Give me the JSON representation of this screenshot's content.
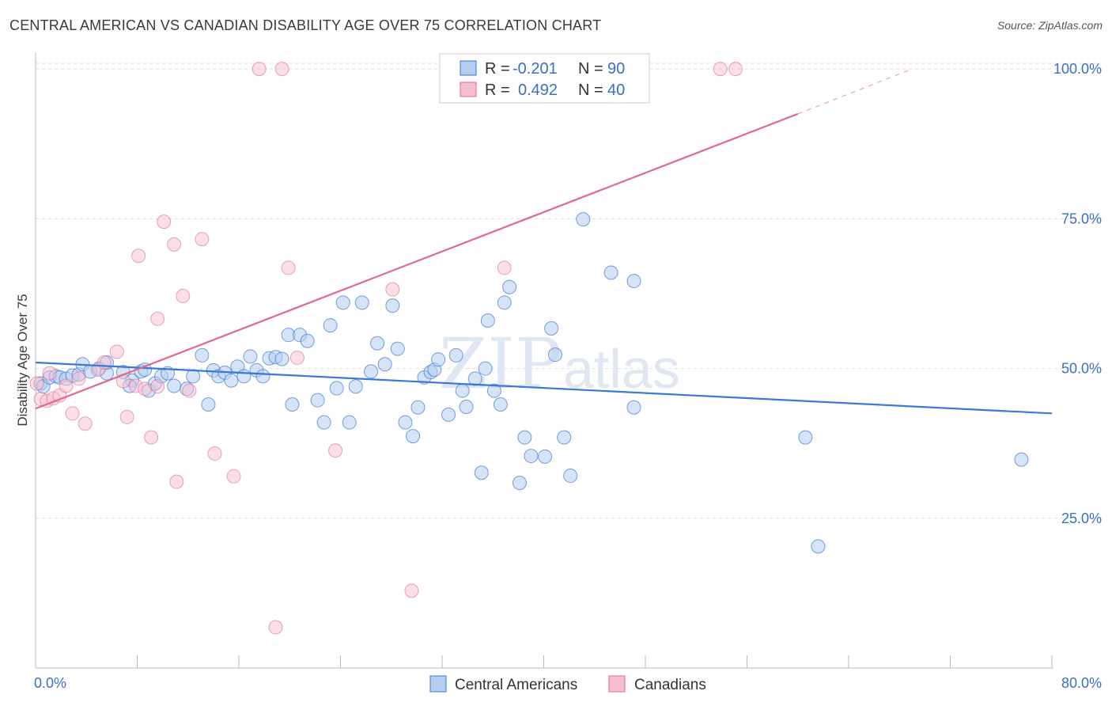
{
  "title": "CENTRAL AMERICAN VS CANADIAN DISABILITY AGE OVER 75 CORRELATION CHART",
  "source": "Source: ZipAtlas.com",
  "watermark": {
    "zip": "ZIP",
    "atlas": "atlas"
  },
  "colors": {
    "blue": "#3a78d4",
    "blue_fill": "#b7cdf0",
    "pink": "#e0688f",
    "pink_fill": "#f6bfd0",
    "grid": "#dddddd",
    "tick_text": "#3a6fc4"
  },
  "legend": {
    "rows": [
      {
        "r_label": "R =",
        "r_value": "-0.201",
        "n_label": "N =",
        "n_value": "90"
      },
      {
        "r_label": "R =",
        "r_value": "0.492",
        "n_label": "N =",
        "n_value": "40"
      }
    ]
  },
  "bottom_legend": {
    "series1": "Central Americans",
    "series2": "Canadians"
  },
  "chart_data": {
    "type": "scatter",
    "title": "CENTRAL AMERICAN VS CANADIAN DISABILITY AGE OVER 75 CORRELATION CHART",
    "xlabel": "",
    "ylabel": "Disability Age Over 75",
    "xlim": [
      0,
      80
    ],
    "ylim": [
      0,
      102
    ],
    "x_tick_labels": [
      "0.0%",
      "80.0%"
    ],
    "y_ticks": [
      25,
      50,
      75,
      100
    ],
    "y_tick_labels": [
      "25.0%",
      "50.0%",
      "75.0%",
      "100.0%"
    ],
    "grid": true,
    "legend_position": "top-center",
    "series": [
      {
        "name": "Central Americans",
        "color": "#3a78d4",
        "trend": {
          "x": [
            0,
            80
          ],
          "y": [
            51.0,
            42.5
          ]
        },
        "points": [
          [
            0.4,
            47.5
          ],
          [
            0.6,
            47
          ],
          [
            1.1,
            48.5
          ],
          [
            1.6,
            48.7
          ],
          [
            1.9,
            48.5
          ],
          [
            2.4,
            48.3
          ],
          [
            2.9,
            48.8
          ],
          [
            3.4,
            49
          ],
          [
            3.7,
            50.7
          ],
          [
            4.3,
            49.5
          ],
          [
            5,
            50
          ],
          [
            5.6,
            49.2
          ],
          [
            6.9,
            49.4
          ],
          [
            7.6,
            48
          ],
          [
            8.3,
            49.5
          ],
          [
            8.6,
            49.8
          ],
          [
            8.9,
            46.3
          ],
          [
            9.4,
            47.5
          ],
          [
            9.9,
            48.7
          ],
          [
            10.4,
            49.2
          ],
          [
            10.9,
            47.1
          ],
          [
            11.9,
            46.6
          ],
          [
            12.4,
            48.7
          ],
          [
            13.1,
            52.2
          ],
          [
            13.6,
            44
          ],
          [
            14,
            49.7
          ],
          [
            14.4,
            48.7
          ],
          [
            14.9,
            49.3
          ],
          [
            15.4,
            48
          ],
          [
            15.9,
            50.3
          ],
          [
            16.4,
            48.7
          ],
          [
            16.9,
            52
          ],
          [
            17.4,
            49.7
          ],
          [
            17.9,
            48.7
          ],
          [
            18.4,
            51.7
          ],
          [
            18.9,
            51.9
          ],
          [
            19.4,
            51.6
          ],
          [
            19.9,
            55.6
          ],
          [
            20.2,
            44
          ],
          [
            20.8,
            55.6
          ],
          [
            21.4,
            54.6
          ],
          [
            22.2,
            44.7
          ],
          [
            22.7,
            41
          ],
          [
            23.2,
            57.2
          ],
          [
            23.7,
            46.7
          ],
          [
            24.2,
            61
          ],
          [
            24.7,
            41
          ],
          [
            25.2,
            47
          ],
          [
            25.7,
            61
          ],
          [
            26.4,
            49.5
          ],
          [
            26.9,
            54.2
          ],
          [
            27.5,
            50.7
          ],
          [
            28.1,
            60.5
          ],
          [
            28.5,
            53.3
          ],
          [
            29.1,
            41
          ],
          [
            29.7,
            38.7
          ],
          [
            30.1,
            43.5
          ],
          [
            30.6,
            48.5
          ],
          [
            31.1,
            49.4
          ],
          [
            31.4,
            49.8
          ],
          [
            31.7,
            51.5
          ],
          [
            32.5,
            42.3
          ],
          [
            33.1,
            52.2
          ],
          [
            33.6,
            46.3
          ],
          [
            33.9,
            43.6
          ],
          [
            34.6,
            48.3
          ],
          [
            35.1,
            32.6
          ],
          [
            35.4,
            50
          ],
          [
            35.6,
            58
          ],
          [
            36.1,
            46.3
          ],
          [
            36.6,
            44
          ],
          [
            36.9,
            61
          ],
          [
            37.3,
            63.6
          ],
          [
            38.1,
            30.9
          ],
          [
            38.5,
            38.5
          ],
          [
            39,
            35.4
          ],
          [
            40.1,
            35.3
          ],
          [
            40.6,
            56.7
          ],
          [
            40.9,
            52.3
          ],
          [
            41.6,
            38.5
          ],
          [
            42.1,
            32.1
          ],
          [
            43.1,
            74.9
          ],
          [
            45.3,
            66
          ],
          [
            47.1,
            43.5
          ],
          [
            47.1,
            64.6
          ],
          [
            60.6,
            38.5
          ],
          [
            61.6,
            20.3
          ],
          [
            77.6,
            34.8
          ],
          [
            5.6,
            51
          ],
          [
            7.4,
            47.1
          ]
        ]
      },
      {
        "name": "Canadians",
        "color": "#e0688f",
        "trend": {
          "x": [
            0,
            60
          ],
          "y": [
            43.3,
            92.5
          ]
        },
        "trend_dashed": {
          "x": [
            60,
            69
          ],
          "y": [
            92.5,
            100
          ]
        },
        "points": [
          [
            0.1,
            47.5
          ],
          [
            0.4,
            44.9
          ],
          [
            0.9,
            44.6
          ],
          [
            1.4,
            45
          ],
          [
            1.9,
            45.5
          ],
          [
            2.4,
            47.1
          ],
          [
            2.9,
            42.5
          ],
          [
            3.9,
            40.8
          ],
          [
            4.9,
            49.8
          ],
          [
            5.4,
            51
          ],
          [
            6.4,
            52.8
          ],
          [
            6.9,
            47.9
          ],
          [
            7.2,
            41.9
          ],
          [
            7.9,
            47.1
          ],
          [
            8.1,
            68.8
          ],
          [
            8.6,
            46.6
          ],
          [
            9.1,
            38.5
          ],
          [
            9.6,
            58.3
          ],
          [
            10.1,
            74.5
          ],
          [
            10.9,
            70.7
          ],
          [
            11.1,
            31.1
          ],
          [
            11.6,
            62.1
          ],
          [
            12.1,
            46.3
          ],
          [
            13.1,
            71.6
          ],
          [
            14.1,
            35.8
          ],
          [
            15.6,
            32
          ],
          [
            17.6,
            100
          ],
          [
            18.9,
            6.8
          ],
          [
            19.4,
            100
          ],
          [
            19.9,
            66.8
          ],
          [
            20.6,
            51.8
          ],
          [
            23.6,
            36.3
          ],
          [
            28.1,
            63.2
          ],
          [
            29.6,
            12.9
          ],
          [
            36.9,
            66.8
          ],
          [
            53.9,
            100
          ],
          [
            55.1,
            100
          ],
          [
            1.1,
            49.2
          ],
          [
            3.4,
            48.3
          ],
          [
            9.6,
            47
          ]
        ]
      }
    ]
  }
}
